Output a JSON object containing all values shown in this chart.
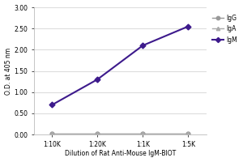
{
  "x_labels": [
    "1:10K",
    "1:20K",
    "1:1K",
    "1:5K"
  ],
  "x_positions": [
    0,
    1,
    2,
    3
  ],
  "igm_values": [
    0.7,
    1.3,
    2.1,
    2.55
  ],
  "igg_values": [
    0.02,
    0.02,
    0.02,
    0.02
  ],
  "iga_values": [
    0.02,
    0.02,
    0.02,
    0.02
  ],
  "igm_color": "#3d1a8c",
  "igg_color": "#999999",
  "iga_color": "#aaaaaa",
  "ylabel": "O.D. at 405 nm",
  "xlabel": "Dilution of Rat Anti-Mouse IgM-BIOT",
  "ylim": [
    0.0,
    3.0
  ],
  "yticks": [
    0.0,
    0.5,
    1.0,
    1.5,
    2.0,
    2.5,
    3.0
  ],
  "legend_labels": [
    "IgM",
    "IgG",
    "IgA"
  ],
  "background_color": "#ffffff",
  "grid_color": "#dddddd"
}
